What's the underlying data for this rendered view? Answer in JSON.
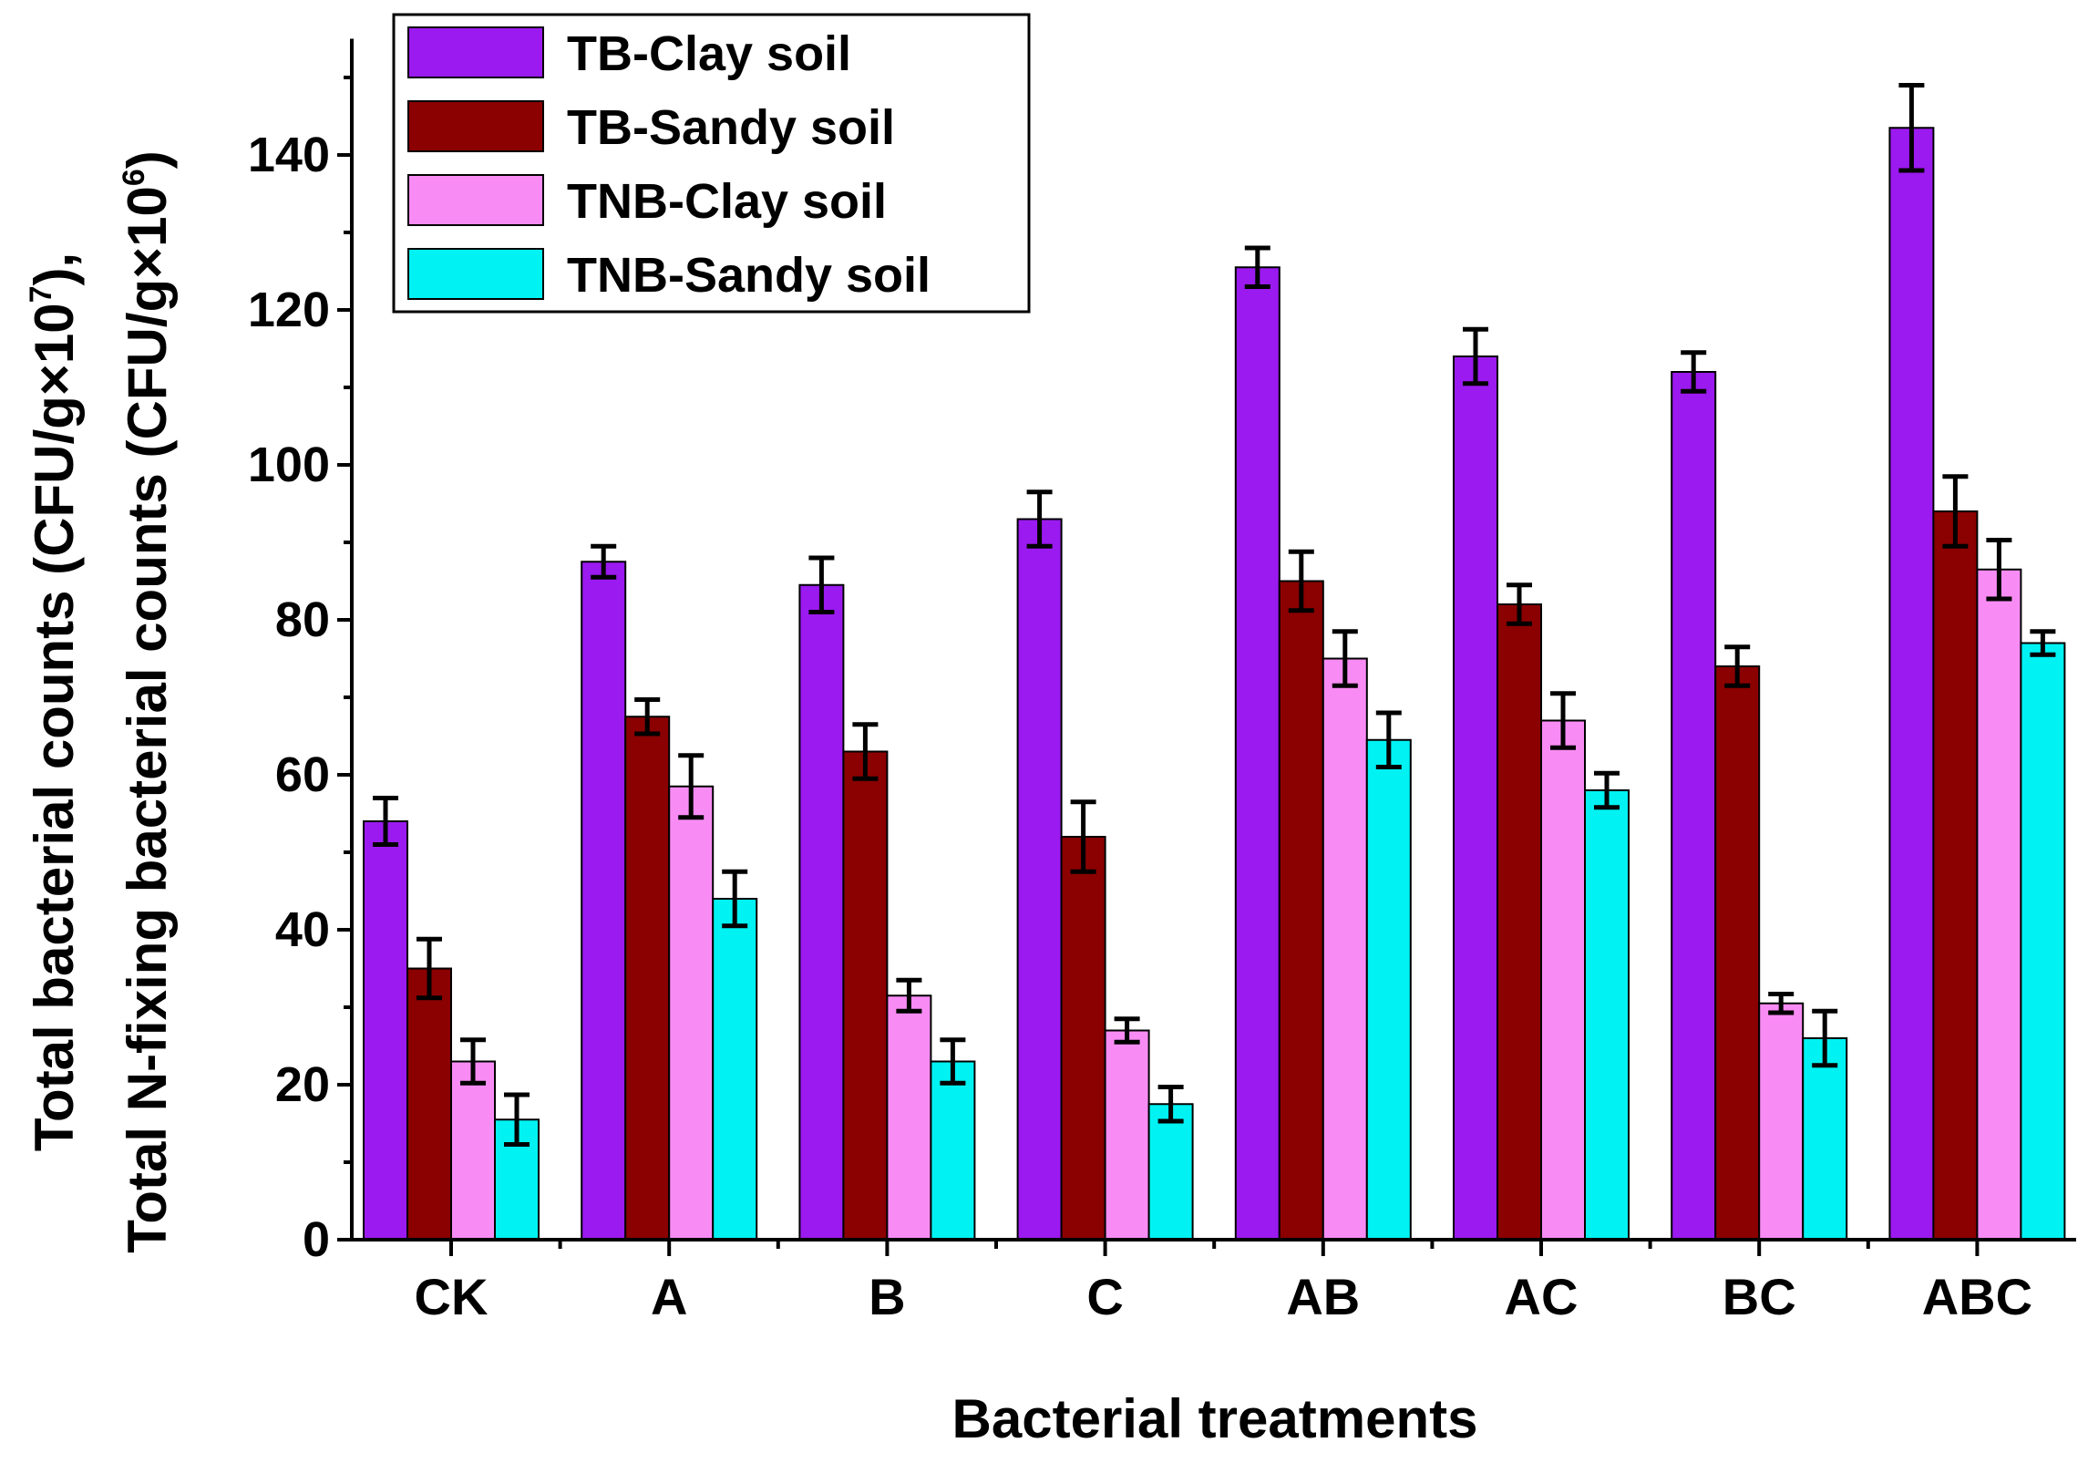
{
  "chart_data": {
    "type": "bar",
    "title": "",
    "xlabel": "Bacterial treatments",
    "ylabel_line1": {
      "pre": "Total bacterial counts (CFU/g×10",
      "sup": "7",
      "post": "),"
    },
    "ylabel_line2": {
      "pre": "Total N-fixing bacterial counts (CFU/g×10",
      "sup": "6",
      "post": ")"
    },
    "ylim": [
      0,
      155
    ],
    "yticks": [
      0,
      20,
      40,
      60,
      80,
      100,
      120,
      140
    ],
    "categories": [
      "CK",
      "A",
      "B",
      "C",
      "AB",
      "AC",
      "BC",
      "ABC"
    ],
    "legend_position": "top-left",
    "series": [
      {
        "name": "TB-Clay soil",
        "color": "#9B1AF0",
        "values": [
          54,
          87.5,
          84.5,
          93,
          125.5,
          114,
          112,
          143.5
        ],
        "errors": [
          3,
          2,
          3.5,
          3.5,
          2.5,
          3.5,
          2.5,
          5.5
        ]
      },
      {
        "name": "TB-Sandy soil",
        "color": "#8B0000",
        "values": [
          35,
          67.5,
          63,
          52,
          85,
          82,
          74,
          94
        ],
        "errors": [
          3.8,
          2.2,
          3.5,
          4.5,
          3.8,
          2.5,
          2.5,
          4.5
        ]
      },
      {
        "name": "TNB-Clay soil",
        "color": "#F98CF4",
        "values": [
          23,
          58.5,
          31.5,
          27,
          75,
          67,
          30.5,
          86.5
        ],
        "errors": [
          2.8,
          4,
          2,
          1.5,
          3.5,
          3.5,
          1.2,
          3.8
        ]
      },
      {
        "name": "TNB-Sandy soil",
        "color": "#00F2F2",
        "values": [
          15.5,
          44,
          23,
          17.5,
          64.5,
          58,
          26,
          77
        ],
        "errors": [
          3.2,
          3.5,
          2.8,
          2.2,
          3.5,
          2.2,
          3.5,
          1.5
        ]
      }
    ]
  }
}
